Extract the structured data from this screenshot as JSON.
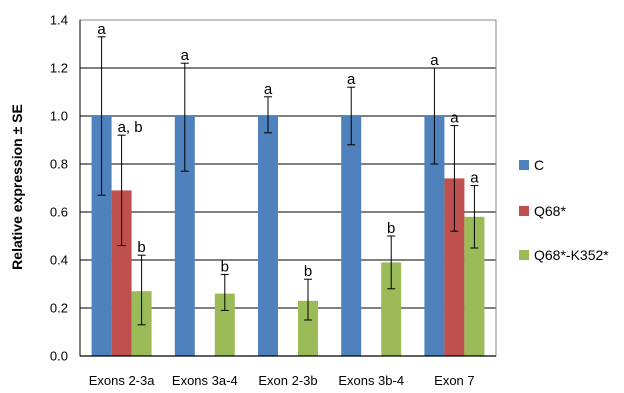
{
  "chart_data": {
    "type": "bar",
    "title": "",
    "xlabel": "",
    "ylabel": "Relative expression ± SE",
    "ylim": [
      0,
      1.4
    ],
    "yticks": [
      "0.0",
      "0.2",
      "0.4",
      "0.6",
      "0.8",
      "1.0",
      "1.2",
      "1.4"
    ],
    "grid": "horizontal",
    "legend_position": "right",
    "categories": [
      "Exons 2-3a",
      "Exons 3a-4",
      "Exon 2-3b",
      "Exons 3b-4",
      "Exon 7"
    ],
    "series": [
      {
        "name": "C",
        "color": "#4F81BD",
        "values": [
          1.0,
          1.0,
          1.0,
          1.0,
          1.0
        ],
        "err_low": [
          0.67,
          0.77,
          0.93,
          0.88,
          0.8
        ],
        "err_high": [
          1.33,
          1.22,
          1.08,
          1.12,
          1.2
        ],
        "sig": [
          "a",
          "a",
          "a",
          "a",
          "a"
        ]
      },
      {
        "name": "Q68*",
        "color": "#C0504D",
        "values": [
          0.69,
          null,
          null,
          null,
          0.74
        ],
        "err_low": [
          0.46,
          null,
          null,
          null,
          0.52
        ],
        "err_high": [
          0.92,
          null,
          null,
          null,
          0.96
        ],
        "sig": [
          "a, b",
          null,
          null,
          null,
          "a"
        ]
      },
      {
        "name": "Q68*-K352*",
        "color": "#9BBB59",
        "values": [
          0.27,
          0.26,
          0.23,
          0.39,
          0.58
        ],
        "err_low": [
          0.13,
          0.19,
          0.15,
          0.28,
          0.45
        ],
        "err_high": [
          0.42,
          0.34,
          0.32,
          0.5,
          0.71
        ],
        "sig": [
          "b",
          "b",
          "b",
          "b",
          "a"
        ]
      }
    ]
  }
}
